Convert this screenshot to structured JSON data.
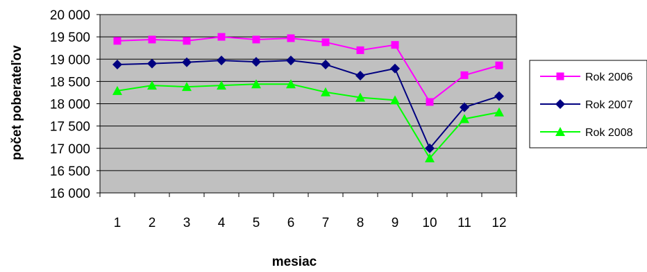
{
  "chart_data": {
    "type": "line",
    "title": "",
    "xlabel": "mesiac",
    "ylabel": "počet poberateľov",
    "categories": [
      "1",
      "2",
      "3",
      "4",
      "5",
      "6",
      "7",
      "8",
      "9",
      "10",
      "11",
      "12"
    ],
    "y_ticks": [
      "16 000",
      "16 500",
      "17 000",
      "17 500",
      "18 000",
      "18 500",
      "19 000",
      "19 500",
      "20 000"
    ],
    "ylim": [
      16000,
      20000
    ],
    "y_step": 500,
    "grid": "horizontal",
    "plot_background": "#c0c0c0",
    "legend_position": "right",
    "series": [
      {
        "name": "Rok 2006",
        "color": "#ff00ff",
        "marker": "square",
        "values": [
          19410,
          19440,
          19410,
          19500,
          19440,
          19470,
          19380,
          19200,
          19320,
          18040,
          18640,
          18860
        ]
      },
      {
        "name": "Rok 2007",
        "color": "#000080",
        "marker": "diamond",
        "values": [
          18880,
          18900,
          18930,
          18970,
          18940,
          18970,
          18880,
          18630,
          18790,
          17000,
          17920,
          18170
        ]
      },
      {
        "name": "Rok 2008",
        "color": "#00ff00",
        "marker": "triangle",
        "values": [
          18290,
          18410,
          18380,
          18410,
          18440,
          18440,
          18260,
          18140,
          18080,
          16780,
          17660,
          17810
        ]
      }
    ]
  }
}
